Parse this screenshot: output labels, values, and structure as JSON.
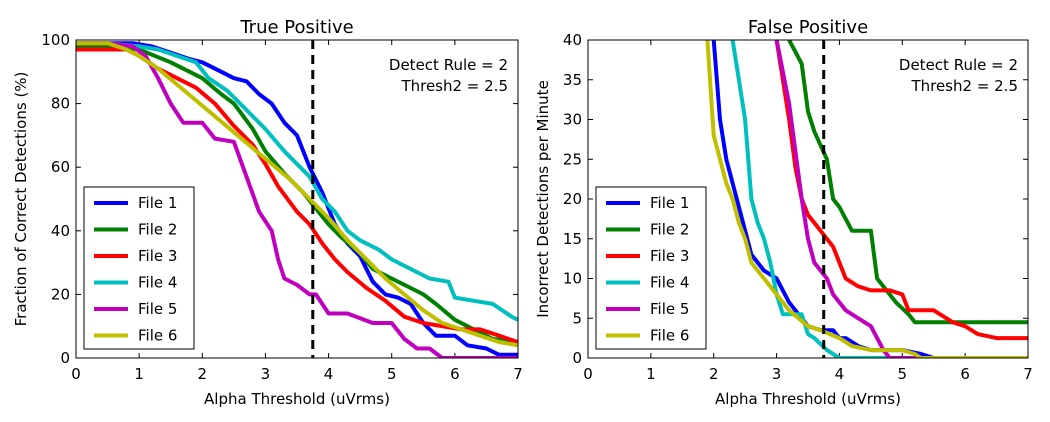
{
  "chart_data": [
    {
      "type": "line",
      "title": "True Positive",
      "xlabel": "Alpha Threshold (uVrms)",
      "ylabel": "Fraction of Correct Detections (%)",
      "xlim": [
        0,
        7
      ],
      "ylim": [
        0,
        100
      ],
      "xticks": [
        0,
        1,
        2,
        3,
        4,
        5,
        6,
        7
      ],
      "yticks": [
        0,
        20,
        40,
        60,
        80,
        100
      ],
      "grid": false,
      "legend_position": "bottom-left",
      "annotation_lines": [
        "Detect Rule = 2",
        "Thresh2 = 2.5"
      ],
      "vline": 3.75,
      "series": [
        {
          "name": "File 1",
          "color": "#0000ff",
          "x": [
            0,
            0.5,
            0.9,
            1.2,
            1.5,
            1.8,
            2.0,
            2.2,
            2.5,
            2.7,
            2.9,
            3.1,
            3.3,
            3.5,
            3.7,
            3.9,
            4.1,
            4.3,
            4.5,
            4.7,
            4.9,
            5.1,
            5.3,
            5.5,
            5.7,
            6.0,
            6.2,
            6.5,
            6.7,
            7.0
          ],
          "y": [
            99,
            99,
            99,
            98,
            96,
            94,
            93,
            91,
            88,
            87,
            83,
            80,
            74,
            70,
            60,
            52,
            42,
            36,
            32,
            24,
            20,
            19,
            17,
            11,
            7,
            7,
            4,
            3,
            1,
            1
          ]
        },
        {
          "name": "File 2",
          "color": "#008000",
          "x": [
            0,
            0.5,
            1.0,
            1.5,
            2.0,
            2.3,
            2.5,
            2.8,
            3.0,
            3.3,
            3.6,
            3.8,
            4.0,
            4.2,
            4.5,
            4.7,
            5.0,
            5.3,
            5.5,
            5.7,
            6.0,
            6.3,
            6.6,
            7.0
          ],
          "y": [
            98,
            98,
            97,
            93,
            88,
            83,
            80,
            72,
            65,
            58,
            52,
            47,
            42,
            38,
            33,
            28,
            25,
            22,
            20,
            17,
            12,
            9,
            6,
            5
          ]
        },
        {
          "name": "File 3",
          "color": "#ff0000",
          "x": [
            0,
            0.5,
            0.8,
            1.0,
            1.3,
            1.6,
            1.9,
            2.2,
            2.5,
            2.8,
            3.0,
            3.2,
            3.5,
            3.7,
            3.9,
            4.1,
            4.3,
            4.6,
            4.9,
            5.2,
            5.5,
            5.8,
            6.1,
            6.4,
            6.7,
            7.0
          ],
          "y": [
            97,
            97,
            97,
            95,
            91,
            88,
            85,
            80,
            73,
            67,
            61,
            54,
            46,
            42,
            36,
            31,
            27,
            22,
            18,
            13,
            11,
            10,
            9,
            9,
            7,
            5
          ]
        },
        {
          "name": "File 4",
          "color": "#00bfbf",
          "x": [
            0,
            0.5,
            1.0,
            1.3,
            1.6,
            1.9,
            2.1,
            2.4,
            2.7,
            3.0,
            3.3,
            3.5,
            3.7,
            3.9,
            4.1,
            4.3,
            4.5,
            4.8,
            5.0,
            5.3,
            5.6,
            5.9,
            6.0,
            6.3,
            6.6,
            6.9,
            7.0
          ],
          "y": [
            99,
            99,
            98,
            97,
            95,
            93,
            88,
            84,
            78,
            72,
            65,
            61,
            57,
            50,
            46,
            40,
            37,
            34,
            31,
            28,
            25,
            24,
            19,
            18,
            17,
            13,
            12
          ]
        },
        {
          "name": "File 5",
          "color": "#bf00bf",
          "x": [
            0,
            0.5,
            0.9,
            1.1,
            1.3,
            1.5,
            1.7,
            2.0,
            2.2,
            2.5,
            2.7,
            2.9,
            3.1,
            3.2,
            3.3,
            3.5,
            3.7,
            3.8,
            4.0,
            4.3,
            4.7,
            5.0,
            5.2,
            5.4,
            5.6,
            5.8,
            6.0,
            6.5,
            7.0
          ],
          "y": [
            99,
            99,
            98,
            95,
            88,
            80,
            74,
            74,
            69,
            68,
            57,
            46,
            40,
            31,
            25,
            23,
            20,
            20,
            14,
            14,
            11,
            11,
            6,
            3,
            3,
            0,
            0,
            0,
            0
          ]
        },
        {
          "name": "File 6",
          "color": "#bfbf00",
          "x": [
            0,
            0.5,
            0.8,
            1.0,
            1.3,
            1.6,
            1.9,
            2.2,
            2.5,
            2.8,
            3.1,
            3.4,
            3.7,
            4.0,
            4.3,
            4.6,
            4.9,
            5.2,
            5.5,
            5.8,
            6.1,
            6.4,
            6.7,
            7.0
          ],
          "y": [
            99,
            99,
            97,
            95,
            91,
            86,
            81,
            76,
            71,
            66,
            61,
            56,
            50,
            44,
            37,
            31,
            25,
            20,
            15,
            11,
            9,
            7,
            5,
            4
          ]
        }
      ]
    },
    {
      "type": "line",
      "title": "False Positive",
      "xlabel": "Alpha Threshold (uVrms)",
      "ylabel": "Incorrect Detections per Minute",
      "xlim": [
        0,
        7
      ],
      "ylim": [
        0,
        40
      ],
      "xticks": [
        0,
        1,
        2,
        3,
        4,
        5,
        6,
        7
      ],
      "yticks": [
        0,
        5,
        10,
        15,
        20,
        25,
        30,
        35,
        40
      ],
      "grid": false,
      "legend_position": "bottom-left",
      "annotation_lines": [
        "Detect Rule = 2",
        "Thresh2 = 2.5"
      ],
      "vline": 3.75,
      "series": [
        {
          "name": "File 1",
          "color": "#0000ff",
          "x": [
            2.0,
            2.1,
            2.2,
            2.4,
            2.6,
            2.8,
            3.0,
            3.2,
            3.5,
            3.7,
            3.9,
            4.0,
            4.1,
            4.3,
            4.5,
            4.9,
            5.0,
            5.3,
            5.5,
            6.0,
            7.0
          ],
          "y": [
            40,
            30,
            25,
            19,
            13,
            11,
            10,
            7,
            4,
            3.5,
            3.5,
            2.5,
            2.5,
            1.5,
            1,
            1,
            1,
            0.5,
            0,
            0,
            0
          ]
        },
        {
          "name": "File 2",
          "color": "#008000",
          "x": [
            3.2,
            3.4,
            3.5,
            3.6,
            3.8,
            3.9,
            4.0,
            4.1,
            4.2,
            4.3,
            4.5,
            4.6,
            4.9,
            5.1,
            5.2,
            5.5,
            6.0,
            7.0
          ],
          "y": [
            40,
            37,
            31,
            28.5,
            25,
            20,
            19,
            17.5,
            16,
            16,
            16,
            10,
            7,
            5.5,
            4.5,
            4.5,
            4.5,
            4.5
          ]
        },
        {
          "name": "File 3",
          "color": "#ff0000",
          "x": [
            3.0,
            3.1,
            3.2,
            3.3,
            3.4,
            3.5,
            3.6,
            3.7,
            3.9,
            4.1,
            4.3,
            4.5,
            4.8,
            5.0,
            5.1,
            5.3,
            5.5,
            5.8,
            6.0,
            6.2,
            6.5,
            6.8,
            7.0
          ],
          "y": [
            40,
            35,
            30,
            24,
            20,
            18,
            17,
            16,
            14,
            10,
            9,
            8.5,
            8.5,
            8,
            6,
            6,
            6,
            4.5,
            4,
            3,
            2.5,
            2.5,
            2.5
          ]
        },
        {
          "name": "File 4",
          "color": "#00bfbf",
          "x": [
            2.3,
            2.4,
            2.5,
            2.6,
            2.7,
            2.8,
            2.9,
            3.0,
            3.1,
            3.2,
            3.4,
            3.5,
            3.6,
            3.8,
            4.0,
            5.0,
            7.0
          ],
          "y": [
            40,
            35,
            30,
            20,
            17,
            15,
            12,
            8,
            5.5,
            5.5,
            5.5,
            3,
            2.5,
            1,
            0,
            0,
            0
          ]
        },
        {
          "name": "File 5",
          "color": "#bf00bf",
          "x": [
            3.0,
            3.1,
            3.2,
            3.3,
            3.4,
            3.5,
            3.6,
            3.8,
            3.9,
            4.0,
            4.1,
            4.3,
            4.5,
            4.7,
            4.8,
            5.0,
            6.0,
            7.0
          ],
          "y": [
            40,
            36,
            32,
            26,
            20,
            15,
            12,
            10,
            8,
            7,
            6,
            5,
            4,
            1,
            0,
            0,
            0,
            0
          ]
        },
        {
          "name": "File 6",
          "color": "#bfbf00",
          "x": [
            1.9,
            2.0,
            2.1,
            2.2,
            2.3,
            2.4,
            2.5,
            2.6,
            2.8,
            3.0,
            3.2,
            3.5,
            3.7,
            4.0,
            4.2,
            4.5,
            5.0,
            5.2,
            5.3,
            5.5,
            6.0,
            7.0
          ],
          "y": [
            40,
            28,
            25,
            22,
            20,
            17,
            15,
            12,
            10,
            8,
            6,
            4,
            3.5,
            2.5,
            1.5,
            1,
            1,
            0.5,
            0,
            0,
            0,
            0
          ]
        }
      ]
    }
  ]
}
